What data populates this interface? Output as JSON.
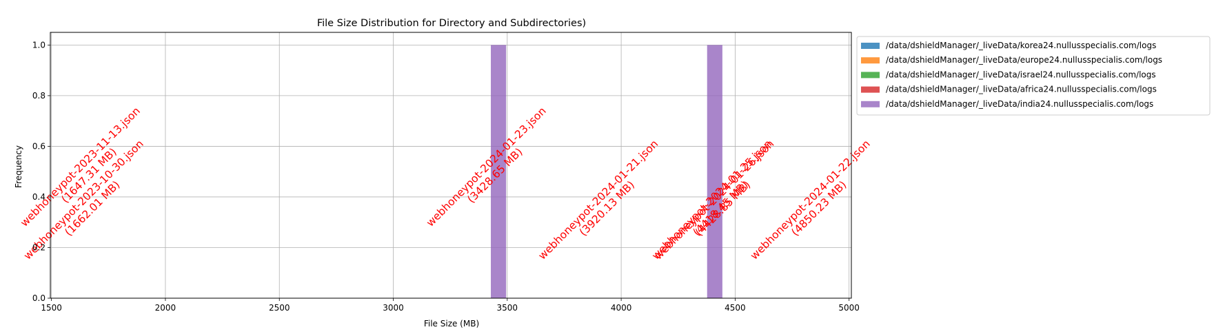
{
  "chart_data": {
    "type": "bar",
    "title": "File Size Distribution for Directory and Subdirectories)",
    "xlabel": "File Size (MB)",
    "ylabel": "Frequency",
    "xlim": [
      1495,
      5010
    ],
    "ylim": [
      0,
      1.05
    ],
    "x_ticks": [
      1500,
      2000,
      2500,
      3000,
      3500,
      4000,
      4500,
      5000
    ],
    "y_ticks": [
      0.0,
      0.2,
      0.4,
      0.6,
      0.8,
      1.0
    ],
    "grid": true,
    "legend_position": "outside-top-right",
    "series": [
      {
        "name": "/data/dshieldManager/_liveData/korea24.nullusspecialis.com/logs",
        "color": "#1f77b4",
        "bins": []
      },
      {
        "name": "/data/dshieldManager/_liveData/europe24.nullusspecialis.com/logs",
        "color": "#ff7f0e",
        "bins": []
      },
      {
        "name": "/data/dshieldManager/_liveData/israel24.nullusspecialis.com/logs",
        "color": "#2ca02c",
        "bins": []
      },
      {
        "name": "/data/dshieldManager/_liveData/africa24.nullusspecialis.com/logs",
        "color": "#d62728",
        "bins": []
      },
      {
        "name": "/data/dshieldManager/_liveData/india24.nullusspecialis.com/logs",
        "color": "#9467bd",
        "bins": [
          {
            "x0": 3428,
            "x1": 3495,
            "count": 1
          },
          {
            "x0": 4377,
            "x1": 4444,
            "count": 1
          }
        ]
      }
    ],
    "annotations": [
      {
        "file": "webhoneypot-2023-11-13.json",
        "size": "(1647.31 MB)",
        "x": 1647.31,
        "y": 0.5
      },
      {
        "file": "webhoneypot-2023-10-30.json",
        "size": "(1662.01 MB)",
        "x": 1662.01,
        "y": 0.37
      },
      {
        "file": "webhoneypot-2024-01-23.json",
        "size": "(3428.65 MB)",
        "x": 3428.65,
        "y": 0.5
      },
      {
        "file": "webhoneypot-2024-01-21.json",
        "size": "(3920.13 MB)",
        "x": 3920.13,
        "y": 0.37
      },
      {
        "file": "webhoneypot-2024-01-25.json",
        "size": "(4418.45 MB)",
        "x": 4418.45,
        "y": 0.37
      },
      {
        "file": "webhoneypot-2024-01-26.json",
        "size": "(4428.85 MB)",
        "x": 4428.85,
        "y": 0.37
      },
      {
        "file": "webhoneypot-2024-01-22.json",
        "size": "(4850.23 MB)",
        "x": 4850.23,
        "y": 0.37
      }
    ],
    "annotation_color": "#ff0000"
  }
}
